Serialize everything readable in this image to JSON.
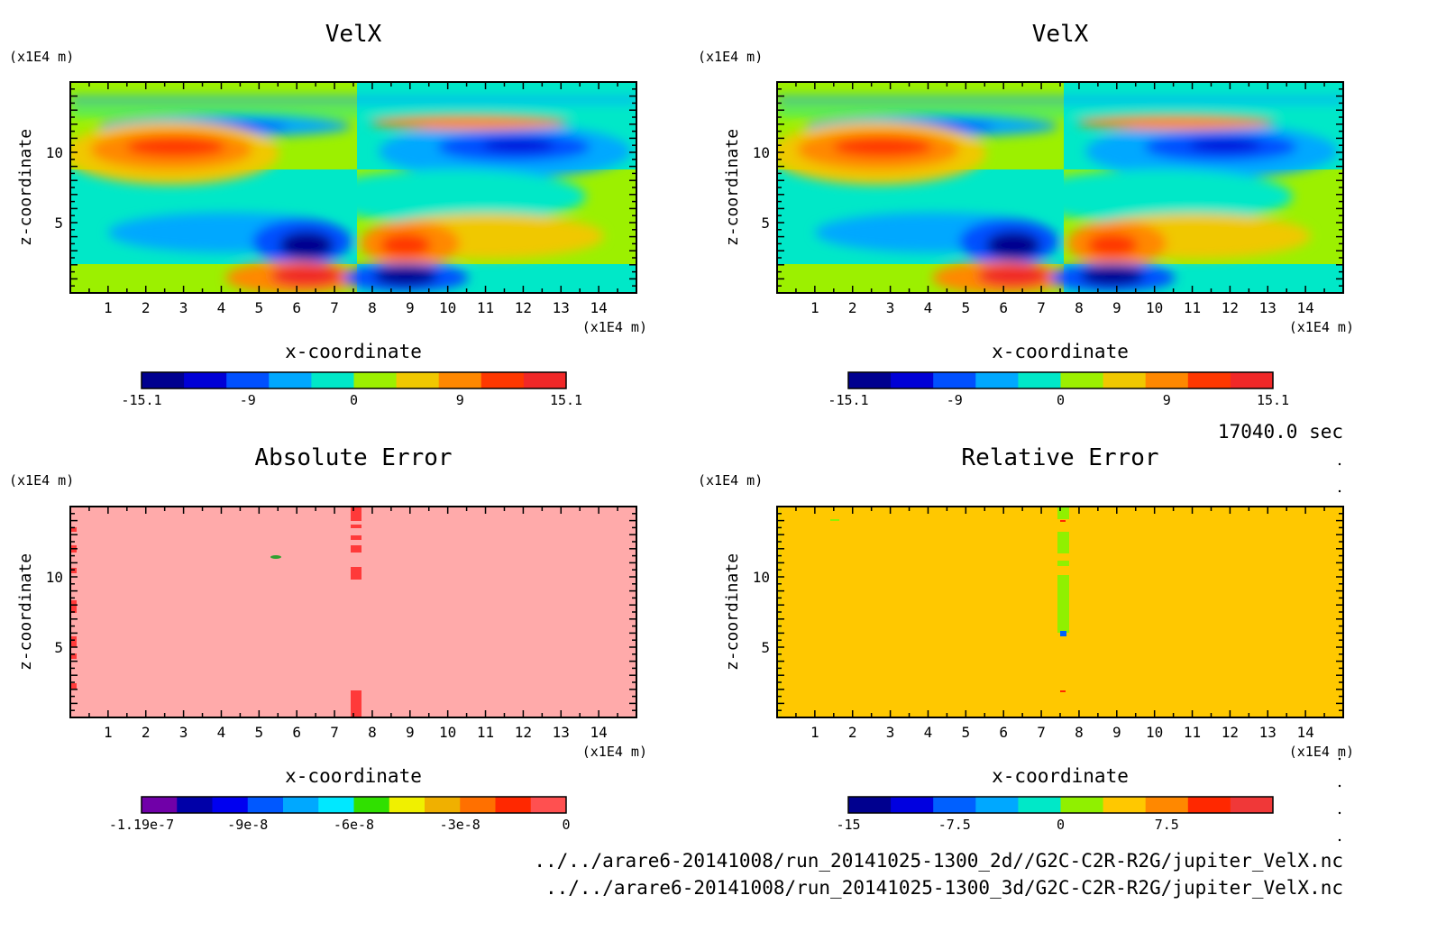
{
  "timestamp": "17040.0 sec",
  "files": [
    "../../arare6-20141008/run_20141025-1300_2d//G2C-C2R-R2G/jupiter_VelX.nc",
    "../../arare6-20141008/run_20141025-1300_3d/G2C-C2R-R2G/jupiter_VelX.nc"
  ],
  "chart_data": [
    {
      "type": "heatmap",
      "title": "VelX",
      "xlabel": "x-coordinate",
      "ylabel": "z-coordinate",
      "x_unit": "(x1E4 m)",
      "y_unit": "(x1E4 m)",
      "xlim": [
        0,
        15
      ],
      "ylim": [
        0,
        15
      ],
      "xticks": [
        "1",
        "2",
        "3",
        "4",
        "5",
        "6",
        "7",
        "8",
        "9",
        "10",
        "11",
        "12",
        "13",
        "14"
      ],
      "yticks": [
        "5",
        "10"
      ],
      "grid": false,
      "colorbar": {
        "labels": [
          "-15.1",
          "-9",
          "0",
          "9",
          "15.1"
        ],
        "colors": [
          "#00008f",
          "#0000d6",
          "#0050ff",
          "#00a8ff",
          "#00e8c8",
          "#9cf000",
          "#f0c800",
          "#ff8800",
          "#ff3800",
          "#f02828"
        ]
      }
    },
    {
      "type": "heatmap",
      "title": "VelX",
      "xlabel": "x-coordinate",
      "ylabel": "z-coordinate",
      "x_unit": "(x1E4 m)",
      "y_unit": "(x1E4 m)",
      "xlim": [
        0,
        15
      ],
      "ylim": [
        0,
        15
      ],
      "xticks": [
        "1",
        "2",
        "3",
        "4",
        "5",
        "6",
        "7",
        "8",
        "9",
        "10",
        "11",
        "12",
        "13",
        "14"
      ],
      "yticks": [
        "5",
        "10"
      ],
      "grid": false,
      "colorbar": {
        "labels": [
          "-15.1",
          "-9",
          "0",
          "9",
          "15.1"
        ],
        "colors": [
          "#00008f",
          "#0000d6",
          "#0050ff",
          "#00a8ff",
          "#00e8c8",
          "#9cf000",
          "#f0c800",
          "#ff8800",
          "#ff3800",
          "#f02828"
        ]
      }
    },
    {
      "type": "heatmap",
      "title": "Absolute Error",
      "xlabel": "x-coordinate",
      "ylabel": "z-coordinate",
      "x_unit": "(x1E4 m)",
      "y_unit": "(x1E4 m)",
      "xlim": [
        0,
        15
      ],
      "ylim": [
        0,
        15
      ],
      "xticks": [
        "1",
        "2",
        "3",
        "4",
        "5",
        "6",
        "7",
        "8",
        "9",
        "10",
        "11",
        "12",
        "13",
        "14"
      ],
      "yticks": [
        "5",
        "10"
      ],
      "grid": false,
      "background_color": "#ffaaaa",
      "colorbar": {
        "labels": [
          "-1.19e-7",
          "-9e-8",
          "-6e-8",
          "-3e-8",
          "0"
        ],
        "colors": [
          "#7000a8",
          "#0000a8",
          "#0000f0",
          "#0058ff",
          "#00a8ff",
          "#00e8ff",
          "#30e000",
          "#f0f000",
          "#f0b000",
          "#ff7000",
          "#ff2800",
          "#ff5050"
        ]
      }
    },
    {
      "type": "heatmap",
      "title": "Relative Error",
      "xlabel": "x-coordinate",
      "ylabel": "z-coordinate",
      "x_unit": "(x1E4 m)",
      "y_unit": "(x1E4 m)",
      "xlim": [
        0,
        15
      ],
      "ylim": [
        0,
        15
      ],
      "xticks": [
        "1",
        "2",
        "3",
        "4",
        "5",
        "6",
        "7",
        "8",
        "9",
        "10",
        "11",
        "12",
        "13",
        "14"
      ],
      "yticks": [
        "5",
        "10"
      ],
      "grid": false,
      "background_color": "#ffc800",
      "colorbar": {
        "labels": [
          "-15",
          "-7.5",
          "0",
          "7.5"
        ],
        "colors": [
          "#00008f",
          "#0000e0",
          "#0060ff",
          "#00a8ff",
          "#00e8c8",
          "#90f000",
          "#ffc800",
          "#ff8800",
          "#ff2800",
          "#f03838"
        ]
      }
    }
  ]
}
